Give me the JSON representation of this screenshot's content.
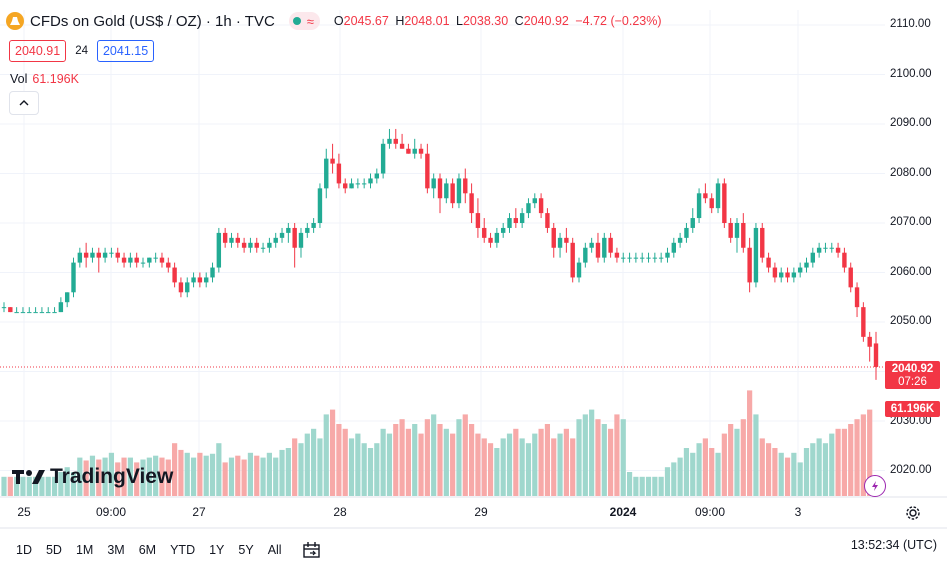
{
  "header": {
    "symbol_title": "CFDs on Gold (US$ / OZ) · 1h · TVC",
    "ohlc": {
      "open_label": "O",
      "open": "2045.67",
      "high_label": "H",
      "high": "2048.01",
      "low_label": "L",
      "low": "2038.30",
      "close_label": "C",
      "close": "2040.92",
      "change": "−4.72 (−0.23%)"
    },
    "pill_icon": "wave-icon"
  },
  "trade": {
    "sell": "2040.91",
    "spread": "24",
    "buy": "2041.15"
  },
  "volume": {
    "label": "Vol",
    "value": "61.196K"
  },
  "price_axis": {
    "labels": [
      "2110.00",
      "2100.00",
      "2090.00",
      "2080.00",
      "2070.00",
      "2060.00",
      "2050.00",
      "2030.00",
      "2020.00"
    ],
    "current_price": "2040.92",
    "countdown": "07:26",
    "volume_tag": "61.196K"
  },
  "time_axis": {
    "labels": [
      "25",
      "09:00",
      "27",
      "28",
      "29",
      "2024",
      "09:00",
      "3"
    ]
  },
  "branding": {
    "logo_text": "TradingView"
  },
  "ranges": [
    "1D",
    "5D",
    "1M",
    "3M",
    "6M",
    "YTD",
    "1Y",
    "5Y",
    "All"
  ],
  "clock": "13:52:34 (UTC)",
  "colors": {
    "up": "#22ab94",
    "down": "#f23645",
    "vol_up": "#9fd7cd",
    "vol_down": "#f7a9a8",
    "accent": "#2962ff"
  },
  "chart_data": {
    "type": "candlestick",
    "price_range": [
      2014,
      2112
    ],
    "candles": [
      [
        2053,
        2054,
        2052,
        2053
      ],
      [
        2053,
        2053,
        2052,
        2052
      ],
      [
        2052,
        2053,
        2052,
        2052
      ],
      [
        2052,
        2053,
        2052,
        2052
      ],
      [
        2052,
        2053,
        2052,
        2052
      ],
      [
        2052,
        2053,
        2052,
        2052
      ],
      [
        2052,
        2053,
        2052,
        2052
      ],
      [
        2052,
        2053,
        2052,
        2052
      ],
      [
        2052,
        2053,
        2052,
        2052
      ],
      [
        2052,
        2055,
        2052,
        2054
      ],
      [
        2054,
        2056,
        2053,
        2056
      ],
      [
        2056,
        2063,
        2055,
        2062
      ],
      [
        2062,
        2065,
        2061,
        2064
      ],
      [
        2064,
        2066,
        2061,
        2063
      ],
      [
        2063,
        2065,
        2062,
        2064
      ],
      [
        2064,
        2065,
        2060,
        2063
      ],
      [
        2063,
        2065,
        2062,
        2064
      ],
      [
        2064,
        2065,
        2063,
        2064
      ],
      [
        2064,
        2065,
        2062,
        2063
      ],
      [
        2063,
        2064,
        2061,
        2062
      ],
      [
        2062,
        2064,
        2061,
        2063
      ],
      [
        2063,
        2064,
        2061,
        2062
      ],
      [
        2062,
        2063,
        2061,
        2062
      ],
      [
        2062,
        2063,
        2061,
        2063
      ],
      [
        2063,
        2064,
        2062,
        2063
      ],
      [
        2063,
        2064,
        2061,
        2062
      ],
      [
        2062,
        2063,
        2060,
        2061
      ],
      [
        2061,
        2062,
        2057,
        2058
      ],
      [
        2058,
        2059,
        2055,
        2056
      ],
      [
        2056,
        2059,
        2055,
        2058
      ],
      [
        2058,
        2060,
        2057,
        2059
      ],
      [
        2059,
        2060,
        2057,
        2058
      ],
      [
        2058,
        2060,
        2057,
        2059
      ],
      [
        2059,
        2062,
        2058,
        2061
      ],
      [
        2061,
        2069,
        2060,
        2068
      ],
      [
        2068,
        2069,
        2065,
        2066
      ],
      [
        2066,
        2068,
        2065,
        2067
      ],
      [
        2067,
        2068,
        2065,
        2066
      ],
      [
        2066,
        2067,
        2064,
        2065
      ],
      [
        2065,
        2067,
        2064,
        2066
      ],
      [
        2066,
        2067,
        2064,
        2065
      ],
      [
        2065,
        2066,
        2064,
        2065
      ],
      [
        2065,
        2067,
        2064,
        2066
      ],
      [
        2066,
        2068,
        2065,
        2067
      ],
      [
        2067,
        2069,
        2066,
        2068
      ],
      [
        2068,
        2070,
        2066,
        2069
      ],
      [
        2069,
        2070,
        2061,
        2065
      ],
      [
        2065,
        2069,
        2063,
        2068
      ],
      [
        2068,
        2070,
        2067,
        2069
      ],
      [
        2069,
        2071,
        2068,
        2070
      ],
      [
        2070,
        2078,
        2069,
        2077
      ],
      [
        2077,
        2085,
        2075,
        2083
      ],
      [
        2083,
        2086,
        2080,
        2082
      ],
      [
        2082,
        2084,
        2077,
        2078
      ],
      [
        2078,
        2079,
        2076,
        2077
      ],
      [
        2077,
        2079,
        2077,
        2078
      ],
      [
        2078,
        2079,
        2077,
        2078
      ],
      [
        2078,
        2079,
        2077,
        2078
      ],
      [
        2078,
        2080,
        2077,
        2079
      ],
      [
        2079,
        2081,
        2078,
        2080
      ],
      [
        2080,
        2087,
        2079,
        2086
      ],
      [
        2086,
        2089,
        2085,
        2087
      ],
      [
        2087,
        2089,
        2085,
        2086
      ],
      [
        2086,
        2088,
        2085,
        2085
      ],
      [
        2085,
        2086,
        2084,
        2084
      ],
      [
        2084,
        2087,
        2083,
        2085
      ],
      [
        2085,
        2086,
        2083,
        2084
      ],
      [
        2084,
        2086,
        2076,
        2077
      ],
      [
        2077,
        2080,
        2075,
        2079
      ],
      [
        2079,
        2080,
        2072,
        2075
      ],
      [
        2075,
        2079,
        2074,
        2078
      ],
      [
        2078,
        2079,
        2073,
        2074
      ],
      [
        2074,
        2080,
        2073,
        2079
      ],
      [
        2079,
        2081,
        2074,
        2076
      ],
      [
        2076,
        2078,
        2070,
        2072
      ],
      [
        2072,
        2075,
        2067,
        2069
      ],
      [
        2069,
        2071,
        2066,
        2067
      ],
      [
        2067,
        2068,
        2065,
        2066
      ],
      [
        2066,
        2069,
        2065,
        2068
      ],
      [
        2068,
        2070,
        2067,
        2069
      ],
      [
        2069,
        2072,
        2068,
        2071
      ],
      [
        2071,
        2073,
        2069,
        2070
      ],
      [
        2070,
        2073,
        2069,
        2072
      ],
      [
        2072,
        2075,
        2071,
        2074
      ],
      [
        2074,
        2076,
        2073,
        2075
      ],
      [
        2075,
        2076,
        2071,
        2072
      ],
      [
        2072,
        2073,
        2068,
        2069
      ],
      [
        2069,
        2070,
        2063,
        2065
      ],
      [
        2065,
        2068,
        2063,
        2067
      ],
      [
        2067,
        2069,
        2064,
        2066
      ],
      [
        2066,
        2067,
        2058,
        2059
      ],
      [
        2059,
        2063,
        2058,
        2062
      ],
      [
        2062,
        2066,
        2061,
        2065
      ],
      [
        2065,
        2067,
        2064,
        2066
      ],
      [
        2066,
        2068,
        2062,
        2063
      ],
      [
        2063,
        2068,
        2062,
        2067
      ],
      [
        2067,
        2068,
        2063,
        2064
      ],
      [
        2064,
        2065,
        2062,
        2063
      ],
      [
        2063,
        2064,
        2062,
        2063
      ],
      [
        2063,
        2064,
        2062,
        2063
      ],
      [
        2063,
        2064,
        2062,
        2063
      ],
      [
        2063,
        2064,
        2062,
        2063
      ],
      [
        2063,
        2064,
        2062,
        2063
      ],
      [
        2063,
        2064,
        2062,
        2063
      ],
      [
        2063,
        2064,
        2062,
        2063
      ],
      [
        2063,
        2065,
        2062,
        2064
      ],
      [
        2064,
        2067,
        2063,
        2066
      ],
      [
        2066,
        2068,
        2065,
        2067
      ],
      [
        2067,
        2070,
        2066,
        2069
      ],
      [
        2069,
        2073,
        2068,
        2071
      ],
      [
        2071,
        2077,
        2070,
        2076
      ],
      [
        2076,
        2078,
        2074,
        2075
      ],
      [
        2075,
        2076,
        2072,
        2073
      ],
      [
        2073,
        2079,
        2072,
        2078
      ],
      [
        2078,
        2079,
        2069,
        2070
      ],
      [
        2070,
        2071,
        2066,
        2067
      ],
      [
        2067,
        2071,
        2064,
        2070
      ],
      [
        2070,
        2072,
        2064,
        2065
      ],
      [
        2065,
        2067,
        2056,
        2058
      ],
      [
        2058,
        2070,
        2057,
        2069
      ],
      [
        2069,
        2070,
        2062,
        2063
      ],
      [
        2063,
        2064,
        2060,
        2061
      ],
      [
        2061,
        2062,
        2058,
        2059
      ],
      [
        2059,
        2061,
        2058,
        2060
      ],
      [
        2060,
        2061,
        2058,
        2059
      ],
      [
        2059,
        2061,
        2058,
        2060
      ],
      [
        2060,
        2062,
        2059,
        2061
      ],
      [
        2061,
        2063,
        2060,
        2062
      ],
      [
        2062,
        2065,
        2061,
        2064
      ],
      [
        2064,
        2066,
        2063,
        2065
      ],
      [
        2065,
        2066,
        2064,
        2065
      ],
      [
        2065,
        2066,
        2064,
        2065
      ],
      [
        2065,
        2066,
        2063,
        2064
      ],
      [
        2064,
        2065,
        2060,
        2061
      ],
      [
        2061,
        2062,
        2056,
        2057
      ],
      [
        2057,
        2058,
        2051,
        2053
      ],
      [
        2053,
        2054,
        2046,
        2047
      ],
      [
        2047,
        2048,
        2042,
        2045
      ],
      [
        2045.67,
        2048.01,
        2038.3,
        2040.92
      ]
    ],
    "volume": [
      20,
      20,
      20,
      20,
      20,
      20,
      20,
      20,
      20,
      25,
      30,
      25,
      40,
      37,
      42,
      38,
      40,
      45,
      35,
      40,
      40,
      35,
      38,
      40,
      42,
      40,
      38,
      55,
      48,
      45,
      40,
      45,
      42,
      44,
      55,
      35,
      40,
      42,
      38,
      45,
      42,
      40,
      45,
      40,
      48,
      50,
      60,
      55,
      65,
      70,
      60,
      85,
      90,
      75,
      70,
      60,
      65,
      55,
      50,
      55,
      70,
      65,
      75,
      80,
      70,
      75,
      65,
      80,
      85,
      75,
      70,
      65,
      80,
      85,
      75,
      65,
      60,
      55,
      50,
      60,
      65,
      70,
      60,
      55,
      65,
      70,
      75,
      60,
      65,
      70,
      60,
      80,
      85,
      90,
      80,
      75,
      70,
      85,
      80,
      25,
      20,
      20,
      20,
      20,
      20,
      30,
      35,
      40,
      50,
      45,
      55,
      60,
      50,
      45,
      65,
      75,
      70,
      80,
      110,
      85,
      60,
      55,
      50,
      45,
      40,
      45,
      35,
      50,
      55,
      60,
      55,
      65,
      70,
      70,
      75,
      80,
      85,
      90
    ]
  }
}
